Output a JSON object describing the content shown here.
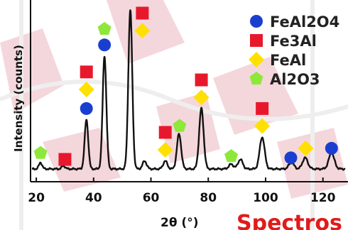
{
  "chart_data": {
    "type": "line",
    "title": "",
    "xlabel": "2θ (°)",
    "ylabel": "Intensity (counts)",
    "xlim": [
      18,
      128
    ],
    "ylim": [
      0,
      100
    ],
    "xticks": [
      20,
      40,
      60,
      80,
      100,
      120
    ],
    "grid": false,
    "legend_position": "top-right",
    "colors": {
      "FeAl2O4": "#1a3fd0",
      "Fe3Al": "#e8182c",
      "FeAl": "#ffe000",
      "Al2O3": "#8ee83a",
      "pattern": "#111111"
    },
    "legend": [
      {
        "key": "FeAl2O4",
        "label": "FeAl2O4",
        "marker": "circle"
      },
      {
        "key": "Fe3Al",
        "label": "Fe3Al",
        "marker": "square"
      },
      {
        "key": "FeAl",
        "label": "FeAl",
        "marker": "diamond"
      },
      {
        "key": "Al2O3",
        "label": "Al2O3",
        "marker": "pentagon"
      }
    ],
    "peaks": [
      {
        "x": 21.5,
        "h": 4
      },
      {
        "x": 29.5,
        "h": 2
      },
      {
        "x": 37.5,
        "h": 31
      },
      {
        "x": 43.8,
        "h": 71
      },
      {
        "x": 52.8,
        "h": 100
      },
      {
        "x": 57.8,
        "h": 5
      },
      {
        "x": 65.0,
        "h": 5
      },
      {
        "x": 69.8,
        "h": 22
      },
      {
        "x": 77.6,
        "h": 38
      },
      {
        "x": 88.0,
        "h": 3
      },
      {
        "x": 91.2,
        "h": 6
      },
      {
        "x": 98.8,
        "h": 20
      },
      {
        "x": 109.0,
        "h": 4
      },
      {
        "x": 113.8,
        "h": 7
      },
      {
        "x": 123.0,
        "h": 10
      }
    ],
    "markers": [
      {
        "phase": "Al2O3",
        "x": 21.5,
        "y": 10
      },
      {
        "phase": "Fe3Al",
        "x": 30.0,
        "y": 6
      },
      {
        "phase": "FeAl2O4",
        "x": 37.5,
        "y": 38
      },
      {
        "phase": "FeAl",
        "x": 37.5,
        "y": 50
      },
      {
        "phase": "Fe3Al",
        "x": 37.5,
        "y": 61
      },
      {
        "phase": "FeAl2O4",
        "x": 43.8,
        "y": 78
      },
      {
        "phase": "Al2O3",
        "x": 43.8,
        "y": 88
      },
      {
        "phase": "FeAl",
        "x": 57.0,
        "y": 87
      },
      {
        "phase": "Fe3Al",
        "x": 57.0,
        "y": 98
      },
      {
        "phase": "FeAl",
        "x": 65.0,
        "y": 12
      },
      {
        "phase": "Fe3Al",
        "x": 65.0,
        "y": 23
      },
      {
        "phase": "Al2O3",
        "x": 70.0,
        "y": 27
      },
      {
        "phase": "FeAl",
        "x": 77.6,
        "y": 45
      },
      {
        "phase": "Fe3Al",
        "x": 77.6,
        "y": 56
      },
      {
        "phase": "Al2O3",
        "x": 88.0,
        "y": 8
      },
      {
        "phase": "FeAl",
        "x": 98.8,
        "y": 27
      },
      {
        "phase": "Fe3Al",
        "x": 98.8,
        "y": 38
      },
      {
        "phase": "FeAl2O4",
        "x": 108.8,
        "y": 7
      },
      {
        "phase": "FeAl",
        "x": 114.0,
        "y": 13
      },
      {
        "phase": "FeAl2O4",
        "x": 123.0,
        "y": 13
      }
    ]
  },
  "overlay_text": "Spectros"
}
